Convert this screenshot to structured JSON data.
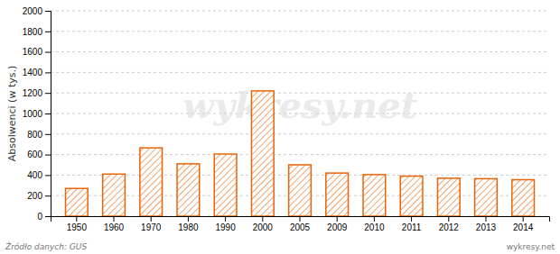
{
  "chart_data": {
    "type": "bar",
    "categories": [
      "1950",
      "1960",
      "1970",
      "1980",
      "1990",
      "2000",
      "2005",
      "2009",
      "2010",
      "2011",
      "2012",
      "2013",
      "2014"
    ],
    "values": [
      270,
      410,
      665,
      510,
      605,
      1220,
      500,
      420,
      405,
      390,
      370,
      365,
      355
    ],
    "color": "#E8650A",
    "y_label": "Absolwenci (w tys.)",
    "ylim": [
      0,
      2000
    ],
    "yticks": [
      0,
      200,
      400,
      600,
      800,
      1000,
      1200,
      1400,
      1600,
      1800,
      2000
    ],
    "grid": true,
    "annotations": [
      "wykresy.net",
      "Źródło danych:  GUS",
      "wykresy.net"
    ]
  }
}
